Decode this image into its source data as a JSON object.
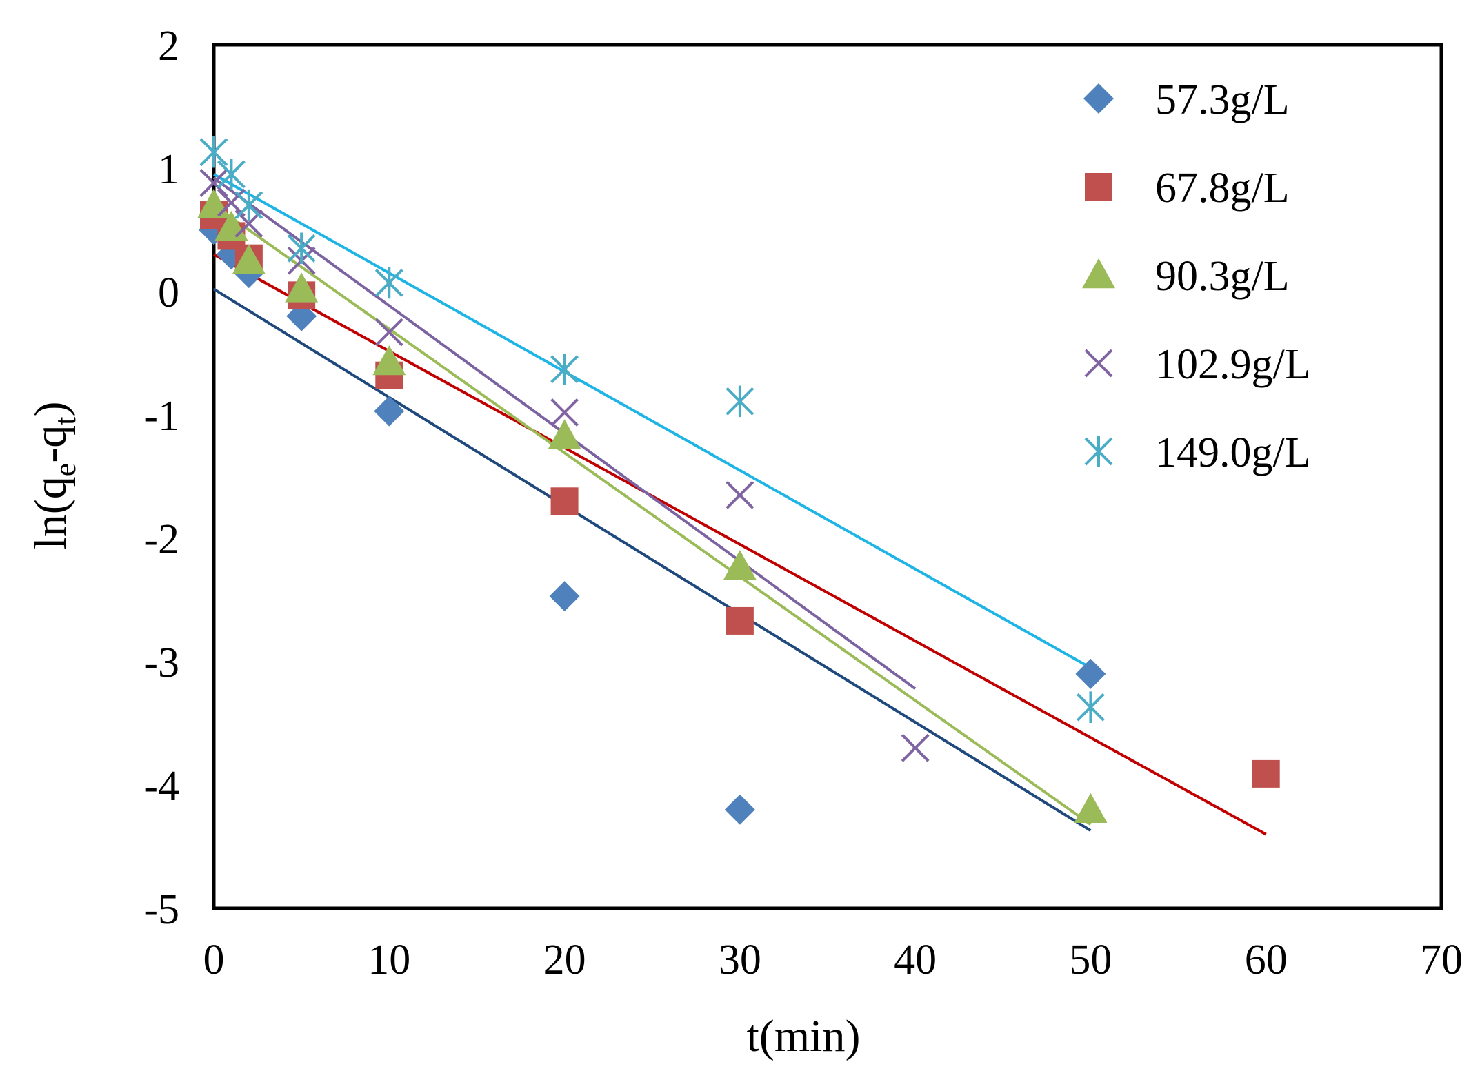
{
  "chart_data": {
    "type": "scatter",
    "title": "",
    "xlabel": "t(min)",
    "ylabel": {
      "prefix": "ln(q",
      "sub1": "e",
      "mid": "-q",
      "sub2": "t",
      "suffix": ")"
    },
    "xlim": [
      0,
      70
    ],
    "ylim": [
      -5,
      2
    ],
    "xticks": [
      0,
      10,
      20,
      30,
      40,
      50,
      60,
      70
    ],
    "yticks": [
      2,
      1,
      0,
      -1,
      -2,
      -3,
      -4,
      -5
    ],
    "grid": false,
    "legend_position": "top-right",
    "series": [
      {
        "name": "57.3g/L",
        "marker": "diamond",
        "color": "#4f81bd",
        "line_color": "#1f497d",
        "x": [
          0,
          1,
          2,
          5,
          10,
          20,
          30,
          50
        ],
        "y": [
          0.5,
          0.3,
          0.15,
          -0.2,
          -0.97,
          -2.47,
          -4.2,
          -3.1
        ],
        "fit": {
          "x": [
            0,
            50
          ],
          "y": [
            0.02,
            -4.37
          ]
        }
      },
      {
        "name": "67.8g/L",
        "marker": "square",
        "color": "#c0504d",
        "line_color": "#c00000",
        "x": [
          0,
          1,
          2,
          5,
          10,
          20,
          30,
          60
        ],
        "y": [
          0.62,
          0.45,
          0.27,
          -0.03,
          -0.68,
          -1.7,
          -2.67,
          -3.91
        ],
        "fit": {
          "x": [
            0,
            60
          ],
          "y": [
            0.3,
            -4.4
          ]
        }
      },
      {
        "name": "90.3g/L",
        "marker": "triangle",
        "color": "#9bbb59",
        "line_color": "#9bbb59",
        "x": [
          0,
          1,
          2,
          5,
          10,
          20,
          30,
          50
        ],
        "y": [
          0.7,
          0.52,
          0.25,
          0.02,
          -0.57,
          -1.17,
          -2.23,
          -4.2
        ],
        "fit": {
          "x": [
            0,
            50
          ],
          "y": [
            0.7,
            -4.32
          ]
        }
      },
      {
        "name": "102.9g/L",
        "marker": "x",
        "color": "#8064a2",
        "line_color": "#7b62a0",
        "x": [
          0,
          1,
          2,
          5,
          10,
          20,
          30,
          40
        ],
        "y": [
          0.88,
          0.72,
          0.55,
          0.25,
          -0.33,
          -0.98,
          -1.65,
          -3.7
        ],
        "fit": {
          "x": [
            0,
            40
          ],
          "y": [
            0.92,
            -3.22
          ]
        }
      },
      {
        "name": "149.0g/L",
        "marker": "star",
        "color": "#4bacc6",
        "line_color": "#1eb4e6",
        "x": [
          0,
          1,
          2,
          5,
          10,
          20,
          30,
          50
        ],
        "y": [
          1.13,
          0.95,
          0.7,
          0.35,
          0.07,
          -0.63,
          -0.89,
          -3.37
        ],
        "fit": {
          "x": [
            0,
            50
          ],
          "y": [
            0.95,
            -3.05
          ]
        }
      }
    ]
  }
}
